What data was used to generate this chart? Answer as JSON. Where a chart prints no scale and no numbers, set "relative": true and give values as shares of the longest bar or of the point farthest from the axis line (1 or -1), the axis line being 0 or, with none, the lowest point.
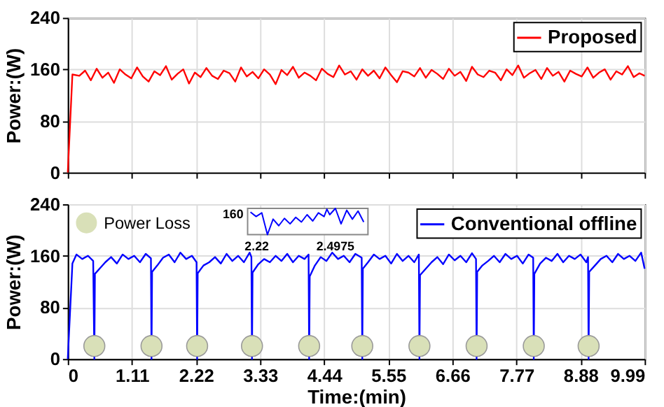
{
  "chart_data": [
    {
      "type": "line",
      "ylabel": "Power:(W)",
      "xlim": [
        0,
        9.99
      ],
      "ylim": [
        0,
        240
      ],
      "xticks": [
        0,
        1.11,
        2.22,
        3.33,
        4.44,
        5.55,
        6.66,
        7.77,
        8.88,
        9.99
      ],
      "yticks": [
        0,
        80,
        160,
        240
      ],
      "grid": true,
      "legend": "top right",
      "tick_labels": "y",
      "series": [
        {
          "name": "Proposed",
          "color": "#ff0000",
          "x": [
            0,
            0.08,
            0.2,
            0.3,
            0.4,
            0.5,
            0.6,
            0.7,
            0.8,
            0.9,
            1.0,
            1.1,
            1.2,
            1.3,
            1.4,
            1.5,
            1.6,
            1.7,
            1.8,
            1.9,
            2.0,
            2.1,
            2.2,
            2.3,
            2.4,
            2.5,
            2.6,
            2.7,
            2.8,
            2.9,
            3.0,
            3.1,
            3.2,
            3.3,
            3.4,
            3.5,
            3.6,
            3.7,
            3.8,
            3.9,
            4.0,
            4.1,
            4.2,
            4.3,
            4.4,
            4.5,
            4.6,
            4.7,
            4.8,
            4.9,
            5.0,
            5.1,
            5.2,
            5.3,
            5.4,
            5.5,
            5.6,
            5.7,
            5.8,
            5.9,
            6.0,
            6.1,
            6.2,
            6.3,
            6.4,
            6.5,
            6.6,
            6.7,
            6.8,
            6.9,
            7.0,
            7.1,
            7.2,
            7.3,
            7.4,
            7.5,
            7.6,
            7.7,
            7.8,
            7.9,
            8.0,
            8.1,
            8.2,
            8.3,
            8.4,
            8.5,
            8.6,
            8.7,
            8.8,
            8.9,
            9.0,
            9.1,
            9.2,
            9.3,
            9.4,
            9.5,
            9.6,
            9.7,
            9.8,
            9.9,
            9.99
          ],
          "values": [
            0,
            152,
            150,
            158,
            143,
            161,
            147,
            155,
            139,
            160,
            152,
            146,
            163,
            149,
            141,
            157,
            151,
            165,
            144,
            153,
            160,
            138,
            155,
            148,
            162,
            150,
            145,
            158,
            154,
            141,
            163,
            149,
            156,
            146,
            160,
            152,
            137,
            159,
            151,
            164,
            147,
            155,
            150,
            143,
            161,
            153,
            148,
            166,
            152,
            157,
            144,
            160,
            150,
            158,
            146,
            163,
            151,
            140,
            157,
            155,
            149,
            162,
            147,
            159,
            153,
            145,
            161,
            150,
            156,
            142,
            164,
            152,
            148,
            158,
            155,
            143,
            160,
            151,
            166,
            147,
            154,
            159,
            145,
            162,
            150,
            156,
            141,
            158,
            153,
            149,
            163,
            147,
            155,
            160,
            144,
            157,
            152,
            165,
            148,
            154,
            150
          ]
        }
      ]
    },
    {
      "type": "line",
      "xlabel": "Time:(min)",
      "ylabel": "Power:(W)",
      "xlim": [
        0,
        9.99
      ],
      "ylim": [
        0,
        240
      ],
      "xticks": [
        0,
        1.11,
        2.22,
        3.33,
        4.44,
        5.55,
        6.66,
        7.77,
        8.88,
        9.99
      ],
      "yticks": [
        0,
        80,
        160,
        240
      ],
      "grid": true,
      "legend": "top right",
      "series": [
        {
          "name": "Conventional offline",
          "color": "#0000ff",
          "x": [
            0,
            0.08,
            0.15,
            0.25,
            0.35,
            0.44,
            0.46,
            0.47,
            0.55,
            0.65,
            0.75,
            0.85,
            0.95,
            1.05,
            1.15,
            1.25,
            1.35,
            1.44,
            1.45,
            1.46,
            1.55,
            1.65,
            1.75,
            1.85,
            1.95,
            2.05,
            2.15,
            2.23,
            2.24,
            2.25,
            2.35,
            2.45,
            2.55,
            2.65,
            2.75,
            2.85,
            2.95,
            3.05,
            3.15,
            3.18,
            3.19,
            3.2,
            3.3,
            3.4,
            3.5,
            3.6,
            3.7,
            3.8,
            3.9,
            4.0,
            4.1,
            4.17,
            4.18,
            4.19,
            4.28,
            4.38,
            4.48,
            4.58,
            4.68,
            4.78,
            4.88,
            4.98,
            5.09,
            5.1,
            5.11,
            5.2,
            5.3,
            5.4,
            5.5,
            5.6,
            5.7,
            5.8,
            5.9,
            6.0,
            6.08,
            6.09,
            6.1,
            6.2,
            6.3,
            6.4,
            6.5,
            6.6,
            6.7,
            6.8,
            6.9,
            7.0,
            7.07,
            7.08,
            7.09,
            7.18,
            7.28,
            7.38,
            7.48,
            7.58,
            7.68,
            7.78,
            7.88,
            7.98,
            8.06,
            8.07,
            8.08,
            8.18,
            8.28,
            8.38,
            8.48,
            8.58,
            8.68,
            8.78,
            8.88,
            8.98,
            9.01,
            9.02,
            9.03,
            9.13,
            9.23,
            9.33,
            9.43,
            9.53,
            9.63,
            9.73,
            9.83,
            9.93,
            9.99
          ],
          "values": [
            0,
            148,
            162,
            155,
            160,
            152,
            0,
            132,
            140,
            150,
            158,
            148,
            162,
            155,
            160,
            150,
            163,
            156,
            0,
            135,
            145,
            157,
            162,
            150,
            165,
            155,
            160,
            150,
            0,
            133,
            145,
            150,
            158,
            148,
            163,
            152,
            160,
            150,
            165,
            158,
            0,
            134,
            147,
            155,
            150,
            160,
            152,
            163,
            150,
            160,
            155,
            162,
            0,
            128,
            145,
            158,
            152,
            165,
            155,
            160,
            150,
            163,
            157,
            0,
            140,
            150,
            162,
            155,
            160,
            148,
            163,
            152,
            160,
            150,
            162,
            0,
            130,
            140,
            150,
            158,
            147,
            162,
            153,
            160,
            150,
            164,
            155,
            0,
            135,
            145,
            152,
            160,
            150,
            163,
            155,
            160,
            148,
            162,
            157,
            0,
            132,
            148,
            157,
            152,
            163,
            150,
            160,
            155,
            162,
            150,
            158,
            0,
            135,
            145,
            155,
            160,
            150,
            163,
            155,
            160,
            152,
            165,
            140
          ]
        },
        {
          "name": "Power Loss",
          "type": "scatter",
          "color": "#d9e0b8",
          "x": [
            0.46,
            1.45,
            2.24,
            3.19,
            4.18,
            5.1,
            6.09,
            7.08,
            8.07,
            9.02
          ],
          "values": [
            20,
            20,
            20,
            20,
            20,
            20,
            20,
            20,
            20,
            20
          ]
        }
      ]
    },
    {
      "type": "line",
      "xlim": [
        2.19,
        2.615
      ],
      "xticks": [
        2.22,
        2.4975
      ],
      "relative": true,
      "annotations": [
        "160"
      ],
      "series": [
        {
          "color": "#0000ff",
          "x": [
            2.2,
            2.22,
            2.24,
            2.25,
            2.26,
            2.28,
            2.3,
            2.32,
            2.34,
            2.36,
            2.38,
            2.4,
            2.42,
            2.44,
            2.46,
            2.47,
            2.48,
            2.5,
            2.52,
            2.54,
            2.56,
            2.58,
            2.6
          ],
          "values": [
            0.86,
            0.69,
            0.83,
            0.41,
            0,
            0.59,
            0.34,
            0.62,
            0.41,
            0.66,
            0.48,
            0.76,
            0.52,
            0.83,
            0.69,
            0.97,
            0.76,
            1,
            0.41,
            0.93,
            0.59,
            0.9,
            0.48
          ]
        }
      ]
    }
  ]
}
